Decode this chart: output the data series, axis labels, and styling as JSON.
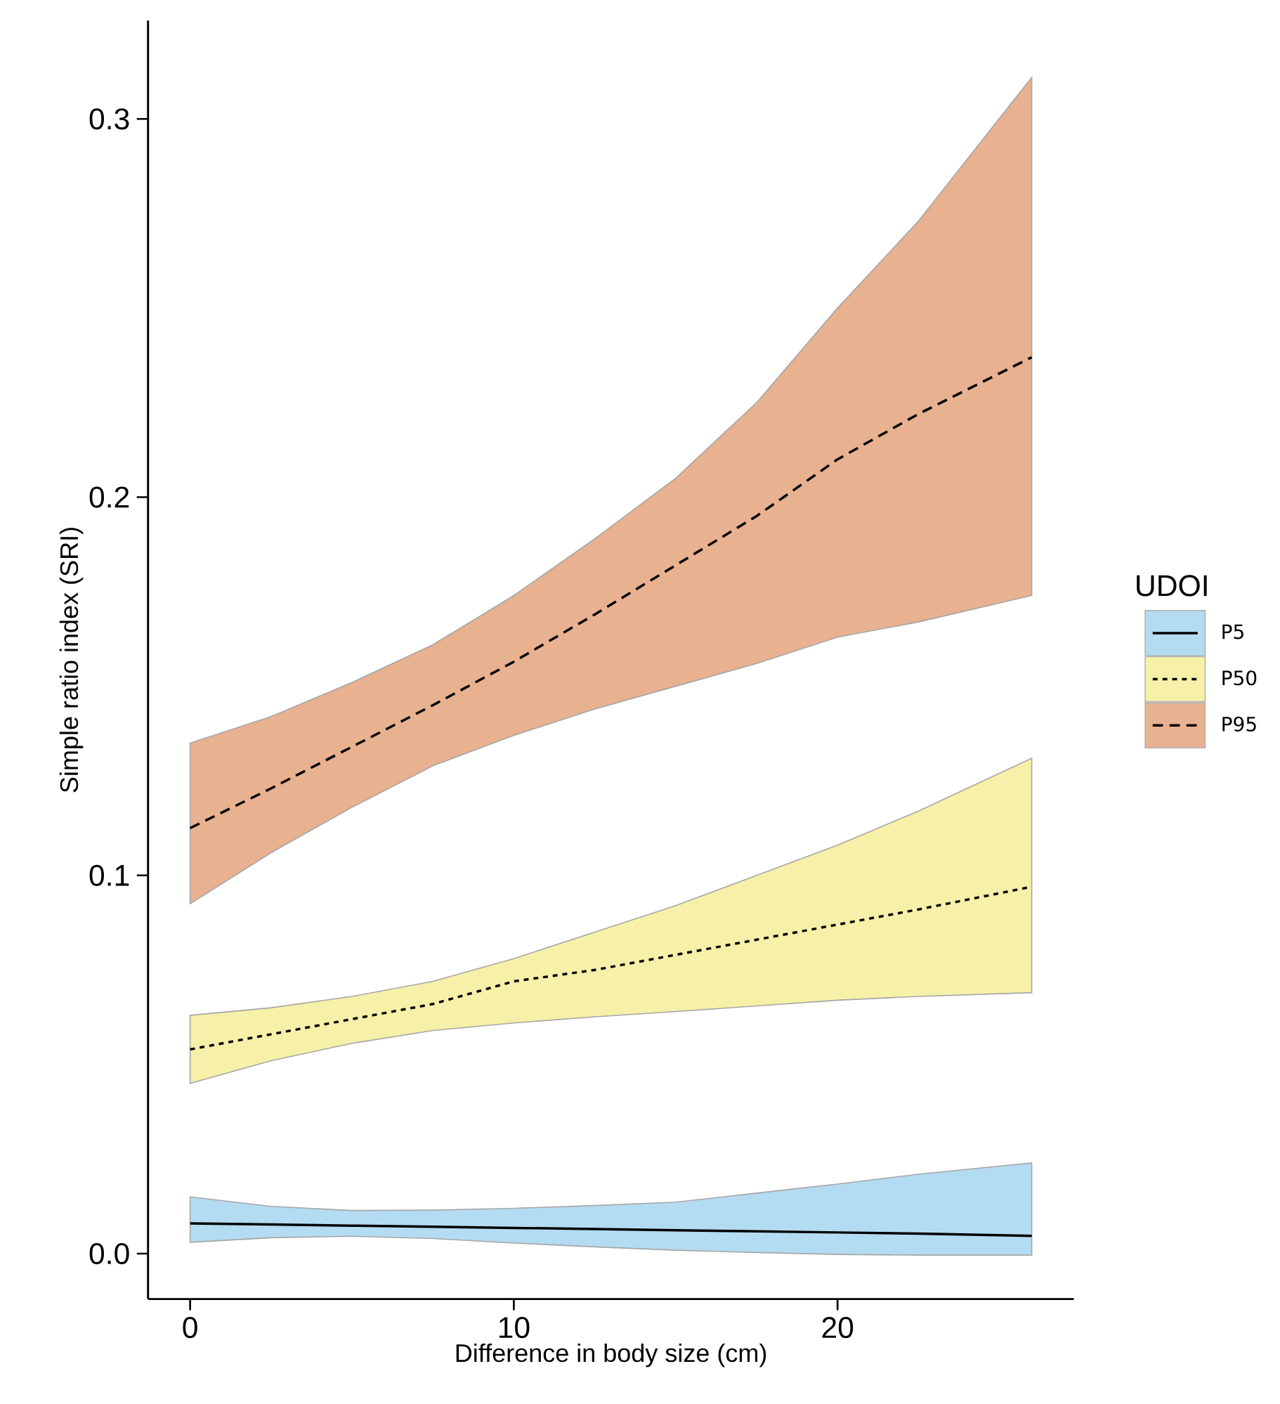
{
  "chart_data": {
    "type": "line",
    "xlabel": "Difference in body size (cm)",
    "ylabel": "Simple ratio index (SRI)",
    "legend_title": "UDOI",
    "legend": "right",
    "xlim": [
      -1.3,
      27.3
    ],
    "ylim": [
      -0.012,
      0.326
    ],
    "xticks": [
      0,
      10,
      20
    ],
    "yticks": [
      {
        "value": 0,
        "label": "0.0"
      },
      0.1,
      0.2,
      0.3
    ],
    "x": [
      0,
      2.5,
      5,
      7.5,
      10,
      12.5,
      15,
      17.5,
      20,
      22.5,
      26
    ],
    "colors": [
      "#b3dcf2",
      "#f7f0a8",
      "#e8b190"
    ],
    "series": [
      {
        "name": "P5",
        "color": "#000000",
        "line_style": "solid",
        "values": [
          0.008,
          0.0077,
          0.0074,
          0.0071,
          0.0068,
          0.0065,
          0.0062,
          0.0059,
          0.0056,
          0.0053,
          0.0047
        ],
        "lower": [
          0.003,
          0.0042,
          0.0046,
          0.004,
          0.0028,
          0.0018,
          0.0009,
          0.0003,
          -0.0002,
          -0.0004,
          -0.0004
        ],
        "upper": [
          0.015,
          0.0125,
          0.0114,
          0.0115,
          0.012,
          0.0127,
          0.0136,
          0.016,
          0.0184,
          0.021,
          0.024
        ]
      },
      {
        "name": "P50",
        "color": "#000000",
        "line_style": "dotted",
        "values": [
          0.054,
          0.058,
          0.062,
          0.066,
          0.072,
          0.075,
          0.079,
          0.083,
          0.087,
          0.091,
          0.097
        ],
        "lower": [
          0.045,
          0.051,
          0.0556,
          0.059,
          0.061,
          0.0626,
          0.064,
          0.0655,
          0.067,
          0.068,
          0.069
        ],
        "upper": [
          0.063,
          0.065,
          0.068,
          0.072,
          0.078,
          0.085,
          0.092,
          0.1,
          0.108,
          0.117,
          0.131
        ]
      },
      {
        "name": "P95",
        "color": "#000000",
        "line_style": "dashed",
        "values": [
          0.1125,
          0.123,
          0.134,
          0.145,
          0.1565,
          0.169,
          0.182,
          0.195,
          0.21,
          0.222,
          0.237
        ],
        "lower": [
          0.0925,
          0.106,
          0.118,
          0.129,
          0.137,
          0.144,
          0.15,
          0.156,
          0.163,
          0.167,
          0.174
        ],
        "upper": [
          0.135,
          0.142,
          0.151,
          0.161,
          0.174,
          0.189,
          0.205,
          0.225,
          0.25,
          0.273,
          0.311
        ]
      }
    ]
  }
}
